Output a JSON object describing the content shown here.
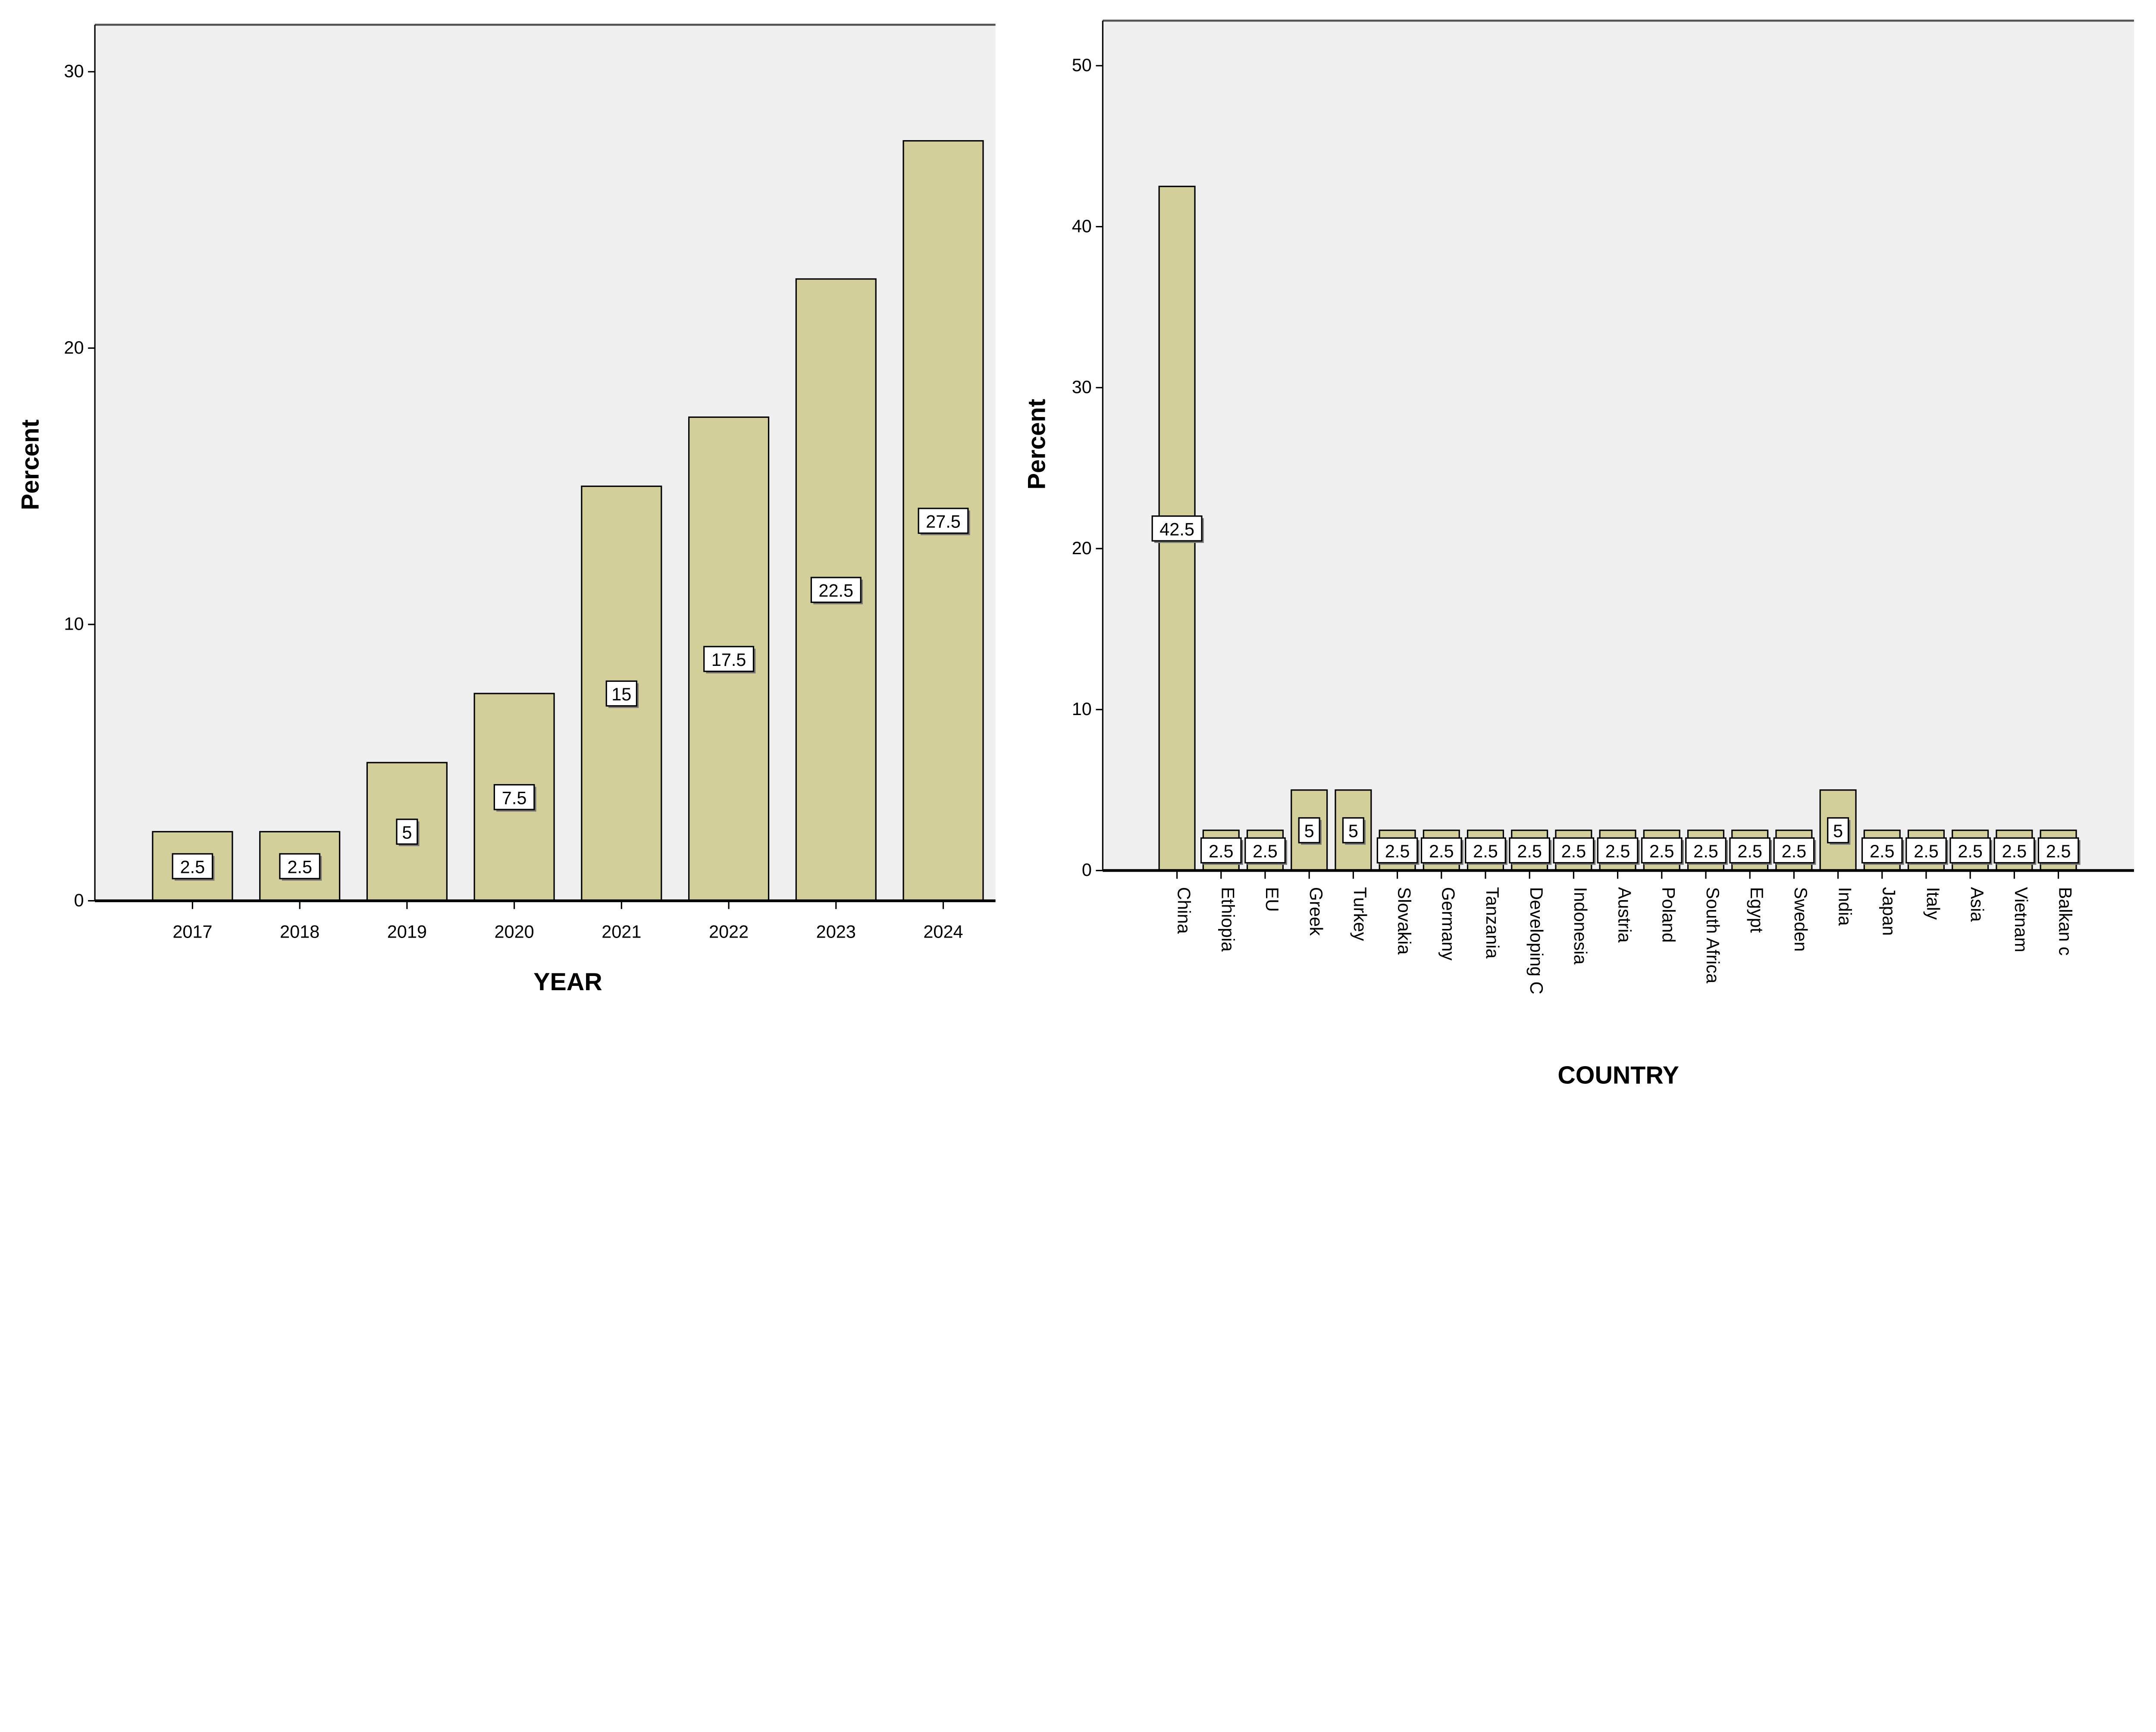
{
  "colors": {
    "bar": "#d3cf9b",
    "plot_bg": "#f0f0f0",
    "bar_stroke": "#000000"
  },
  "chart_data": [
    {
      "type": "bar",
      "title": "",
      "xlabel": "YEAR",
      "ylabel": "Percent",
      "ylim": [
        0,
        31.7
      ],
      "yticks": [
        0,
        10,
        20,
        30
      ],
      "grid": false,
      "categories": [
        "2017",
        "2018",
        "2019",
        "2020",
        "2021",
        "2022",
        "2023",
        "2024"
      ],
      "values": [
        2.5,
        2.5,
        5,
        7.5,
        15,
        17.5,
        22.5,
        27.5
      ],
      "data_labels": [
        "2.5",
        "2.5",
        "5",
        "7.5",
        "15",
        "17.5",
        "22.5",
        "27.5"
      ]
    },
    {
      "type": "bar",
      "title": "",
      "xlabel": "COUNTRY",
      "ylabel": "Percent",
      "ylim": [
        0,
        52.8
      ],
      "yticks": [
        0,
        10,
        20,
        30,
        40,
        50
      ],
      "grid": false,
      "categories": [
        "China",
        "Ethiopia",
        "EU",
        "Greek",
        "Turkey",
        "Slovakia",
        "Germany",
        "Tanzania",
        "Developing C",
        "Indonesia",
        "Austria",
        "Poland",
        "South Africa",
        "Egypt",
        "Sweden",
        "India",
        "Japan",
        "Italy",
        "Asia",
        "Vietnam",
        "Balkan c"
      ],
      "values": [
        42.5,
        2.5,
        2.5,
        5,
        5,
        2.5,
        2.5,
        2.5,
        2.5,
        2.5,
        2.5,
        2.5,
        2.5,
        2.5,
        2.5,
        5,
        2.5,
        2.5,
        2.5,
        2.5,
        2.5
      ],
      "data_labels": [
        "42.5",
        "2.5",
        "2.5",
        "5",
        "5",
        "2.5",
        "2.5",
        "2.5",
        "2.5",
        "2.5",
        "2.5",
        "2.5",
        "2.5",
        "2.5",
        "2.5",
        "5",
        "2.5",
        "2.5",
        "2.5",
        "2.5",
        "2.5"
      ]
    }
  ]
}
